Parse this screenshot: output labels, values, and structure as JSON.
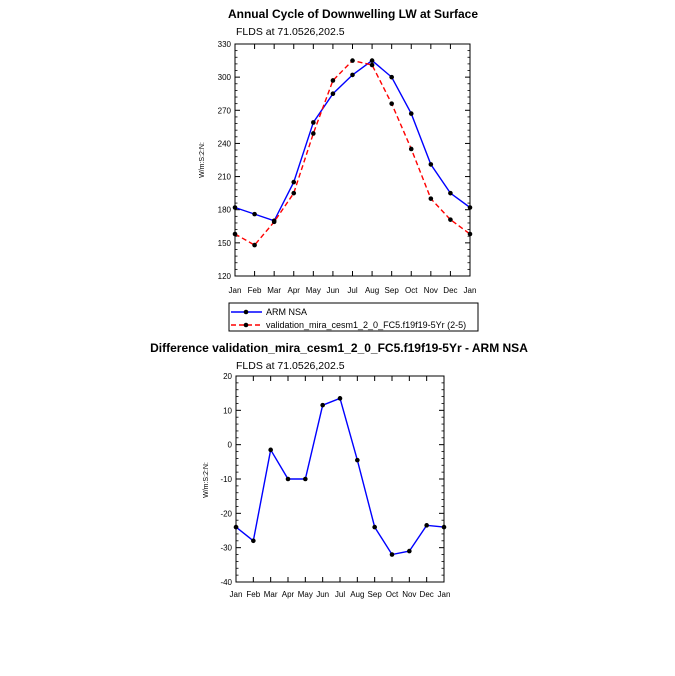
{
  "chart_data": [
    {
      "type": "line",
      "title": "Annual Cycle of Downwelling LW at Surface",
      "subtitle": "FLDS at 71.0526,202.5",
      "ylabel": "W/m:S:2:N:",
      "xlabel": "",
      "categories": [
        "Jan",
        "Feb",
        "Mar",
        "Apr",
        "May",
        "Jun",
        "Jul",
        "Aug",
        "Sep",
        "Oct",
        "Nov",
        "Dec",
        "Jan"
      ],
      "ylim": [
        120,
        330
      ],
      "yticks": [
        120,
        150,
        180,
        210,
        240,
        270,
        300,
        330
      ],
      "series": [
        {
          "name": "ARM NSA",
          "color": "#0000ff",
          "dash": "solid",
          "values": [
            182,
            176,
            170,
            205,
            259,
            285,
            302,
            315,
            300,
            267,
            221,
            195,
            182
          ]
        },
        {
          "name": "validation_mira_cesm1_2_0_FC5.f19f19-5Yr (2-5)",
          "color": "#ff0000",
          "dash": "dashed",
          "values": [
            158,
            148,
            169,
            195,
            249,
            297,
            315,
            311,
            276,
            235,
            190,
            171,
            158
          ]
        }
      ],
      "legend": "bottom"
    },
    {
      "type": "line",
      "title": "Difference validation_mira_cesm1_2_0_FC5.f19f19-5Yr - ARM NSA",
      "subtitle": "FLDS at 71.0526,202.5",
      "ylabel": "W/m:S:2:N:",
      "xlabel": "",
      "categories": [
        "Jan",
        "Feb",
        "Mar",
        "Apr",
        "May",
        "Jun",
        "Jul",
        "Aug",
        "Sep",
        "Oct",
        "Nov",
        "Dec",
        "Jan"
      ],
      "ylim": [
        -40,
        20
      ],
      "yticks": [
        -40,
        -30,
        -20,
        -10,
        0,
        10,
        20
      ],
      "series": [
        {
          "name": "Difference",
          "color": "#0000ff",
          "dash": "solid",
          "values": [
            -24,
            -28,
            -1.5,
            -10,
            -10,
            11.5,
            13.5,
            -4.5,
            -24,
            -32,
            -31,
            -23.5,
            -24
          ]
        }
      ]
    }
  ]
}
